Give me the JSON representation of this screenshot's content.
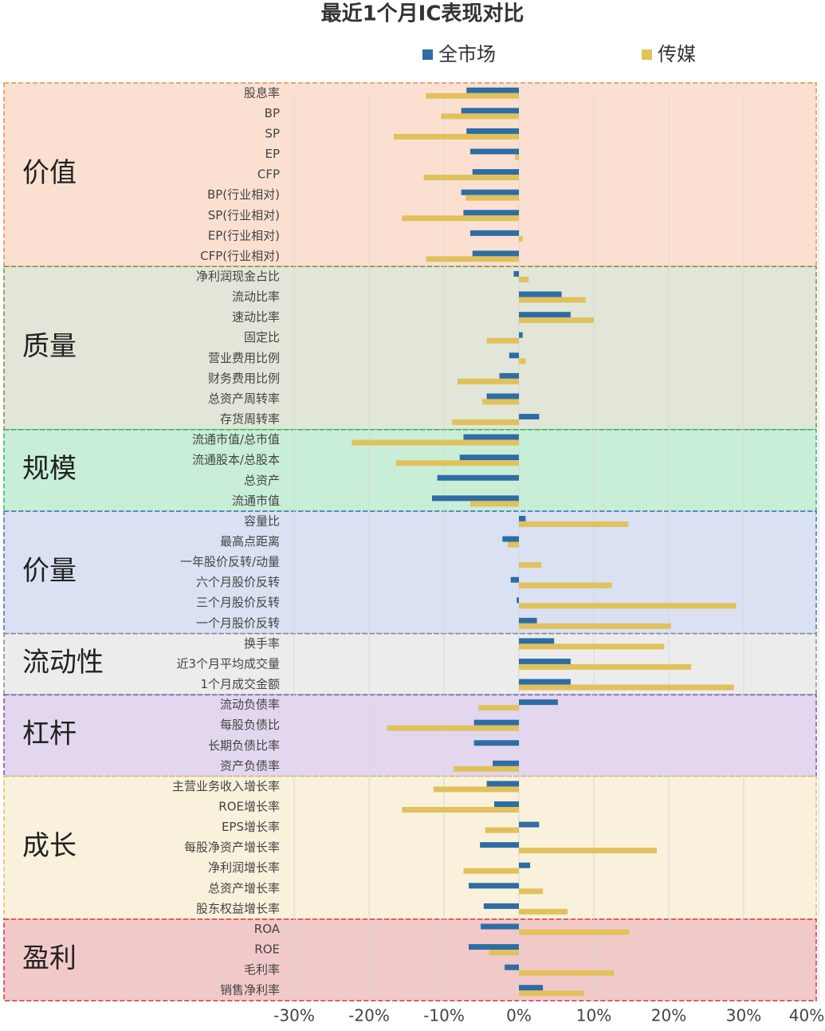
{
  "chart_data": {
    "type": "bar",
    "orientation": "horizontal",
    "title": "最近1个月IC表现对比",
    "groups": [
      {
        "label": "价值",
        "color": "#fbe0d2",
        "border": "#ee8a4a",
        "categories": [
          "股息率",
          "BP",
          "SP",
          "EP",
          "CFP",
          "BP(行业相对)",
          "SP(行业相对)",
          "EP(行业相对)",
          "CFP(行业相对)"
        ]
      },
      {
        "label": "质量",
        "color": "#e1e6d8",
        "border": "#6b8f3a",
        "categories": [
          "净利润现金占比",
          "流动比率",
          "速动比率",
          "固定比",
          "营业费用比例",
          "财务费用比例",
          "总资产周转率",
          "存货周转率"
        ]
      },
      {
        "label": "规模",
        "color": "#c9eed7",
        "border": "#2cb36a",
        "categories": [
          "流通市值/总市值",
          "流通股本/总股本",
          "总资产",
          "流通市值"
        ]
      },
      {
        "label": "价量",
        "color": "#d9e1f2",
        "border": "#3c6fc4",
        "categories": [
          "容量比",
          "最高点距离",
          "一年股价反转/动量",
          "六个月股价反转",
          "三个月股价反转",
          "一个月股价反转"
        ]
      },
      {
        "label": "流动性",
        "color": "#ececec",
        "border": "#888888",
        "categories": [
          "换手率",
          "近3个月平均成交量",
          "1个月成交金额"
        ]
      },
      {
        "label": "杠杆",
        "color": "#e2d7ee",
        "border": "#7a4fb0",
        "categories": [
          "流动负债率",
          "每股负债比",
          "长期负债比率",
          "资产负债率"
        ]
      },
      {
        "label": "成长",
        "color": "#faf1dc",
        "border": "#e0c060",
        "categories": [
          "主营业务收入增长率",
          "ROE增长率",
          "EPS增长率",
          "每股净资产增长率",
          "净利润增长率",
          "总资产增长率",
          "股东权益增长率"
        ]
      },
      {
        "label": "盈利",
        "color": "#f2c9c9",
        "border": "#d9303a",
        "categories": [
          "ROA",
          "ROE",
          "毛利率",
          "销售净利率"
        ]
      }
    ],
    "series": [
      {
        "name": "全市场",
        "color": "#2e6da4",
        "values": [
          -7.0,
          -7.7,
          -7.0,
          -6.5,
          -6.2,
          -7.7,
          -7.4,
          -6.5,
          -6.2,
          -0.7,
          5.7,
          6.9,
          0.5,
          -1.3,
          -2.6,
          -4.3,
          2.7,
          -7.4,
          -7.9,
          -10.9,
          -11.6,
          0.9,
          -2.2,
          0,
          -1.1,
          -0.3,
          2.4,
          4.7,
          6.9,
          6.9,
          5.2,
          -6.0,
          -6.0,
          -3.5,
          -4.3,
          -3.3,
          2.7,
          -5.2,
          1.5,
          -6.7,
          -4.7,
          -5.1,
          -6.7,
          -1.9,
          3.2
        ]
      },
      {
        "name": "传媒",
        "color": "#e1c15c",
        "values": [
          -12.4,
          -10.4,
          -16.7,
          -0.5,
          -12.7,
          -7.1,
          -15.6,
          0.5,
          -12.4,
          1.3,
          8.9,
          10.0,
          -4.3,
          0.9,
          -8.2,
          -4.9,
          -8.9,
          -22.3,
          -16.4,
          0,
          -6.5,
          14.6,
          -1.5,
          3.0,
          12.4,
          29.0,
          20.3,
          19.4,
          23.0,
          28.7,
          -5.4,
          -17.6,
          0,
          -8.7,
          -11.4,
          -15.6,
          -4.5,
          18.4,
          -7.4,
          3.2,
          6.5,
          14.7,
          -4.0,
          12.7,
          8.7
        ]
      }
    ],
    "xlim": [
      -30,
      40
    ],
    "xticks": [
      {
        "value": -30,
        "label": "-30%"
      },
      {
        "value": -20,
        "label": "-20%"
      },
      {
        "value": -10,
        "label": "-10%"
      },
      {
        "value": 0,
        "label": "0%"
      },
      {
        "value": 10,
        "label": "10%"
      },
      {
        "value": 20,
        "label": "20%"
      },
      {
        "value": 30,
        "label": "30%"
      },
      {
        "value": 40,
        "label": "40%"
      }
    ],
    "grid": true
  }
}
